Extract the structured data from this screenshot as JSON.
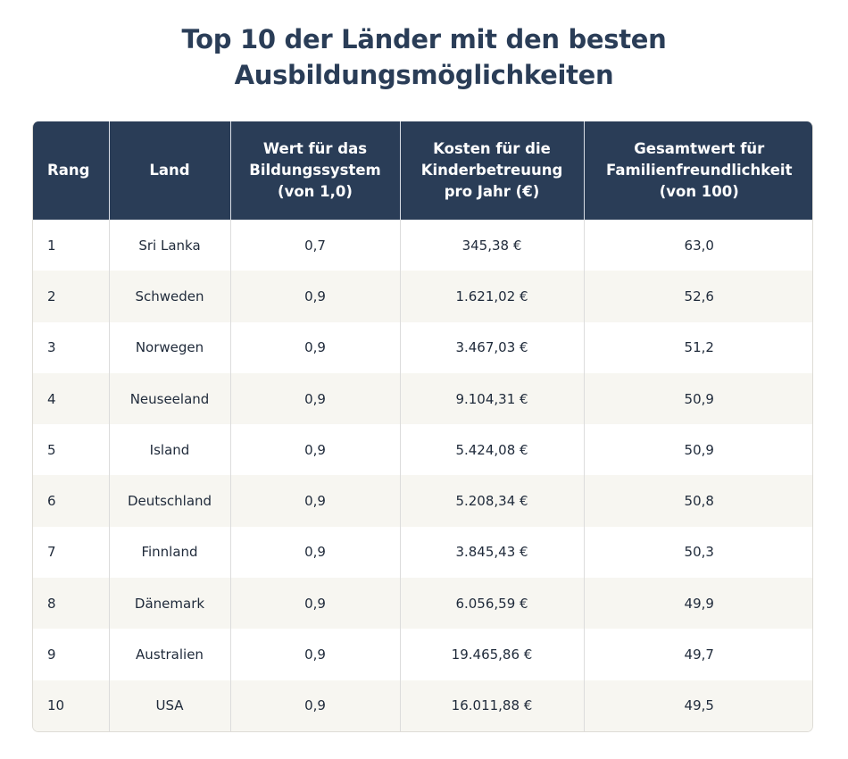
{
  "title_line1": "Top 10 der Länder mit den besten",
  "title_line2": "Ausbildungsmöglichkeiten",
  "colors": {
    "header_bg": "#2a3d57",
    "alt_row": "#f7f6f1"
  },
  "chart_data": {
    "type": "table",
    "title": "Top 10 der Länder mit den besten Ausbildungsmöglichkeiten",
    "columns": [
      "Rang",
      "Land",
      "Wert für das Bildungssystem (von 1,0)",
      "Kosten für die Kinderbetreuung pro Jahr (€)",
      "Gesamtwert für Familienfreundlichkeit (von 100)"
    ],
    "rows": [
      [
        "1",
        "Sri Lanka",
        "0,7",
        "345,38 €",
        "63,0"
      ],
      [
        "2",
        "Schweden",
        "0,9",
        "1.621,02 €",
        "52,6"
      ],
      [
        "3",
        "Norwegen",
        "0,9",
        "3.467,03 €",
        "51,2"
      ],
      [
        "4",
        "Neuseeland",
        "0,9",
        "9.104,31 €",
        "50,9"
      ],
      [
        "5",
        "Island",
        "0,9",
        "5.424,08 €",
        "50,9"
      ],
      [
        "6",
        "Deutschland",
        "0,9",
        "5.208,34 €",
        "50,8"
      ],
      [
        "7",
        "Finnland",
        "0,9",
        "3.845,43 €",
        "50,3"
      ],
      [
        "8",
        "Dänemark",
        "0,9",
        "6.056,59 €",
        "49,9"
      ],
      [
        "9",
        "Australien",
        "0,9",
        "19.465,86 €",
        "49,7"
      ],
      [
        "10",
        "USA",
        "0,9",
        "16.011,88 €",
        "49,5"
      ]
    ]
  }
}
